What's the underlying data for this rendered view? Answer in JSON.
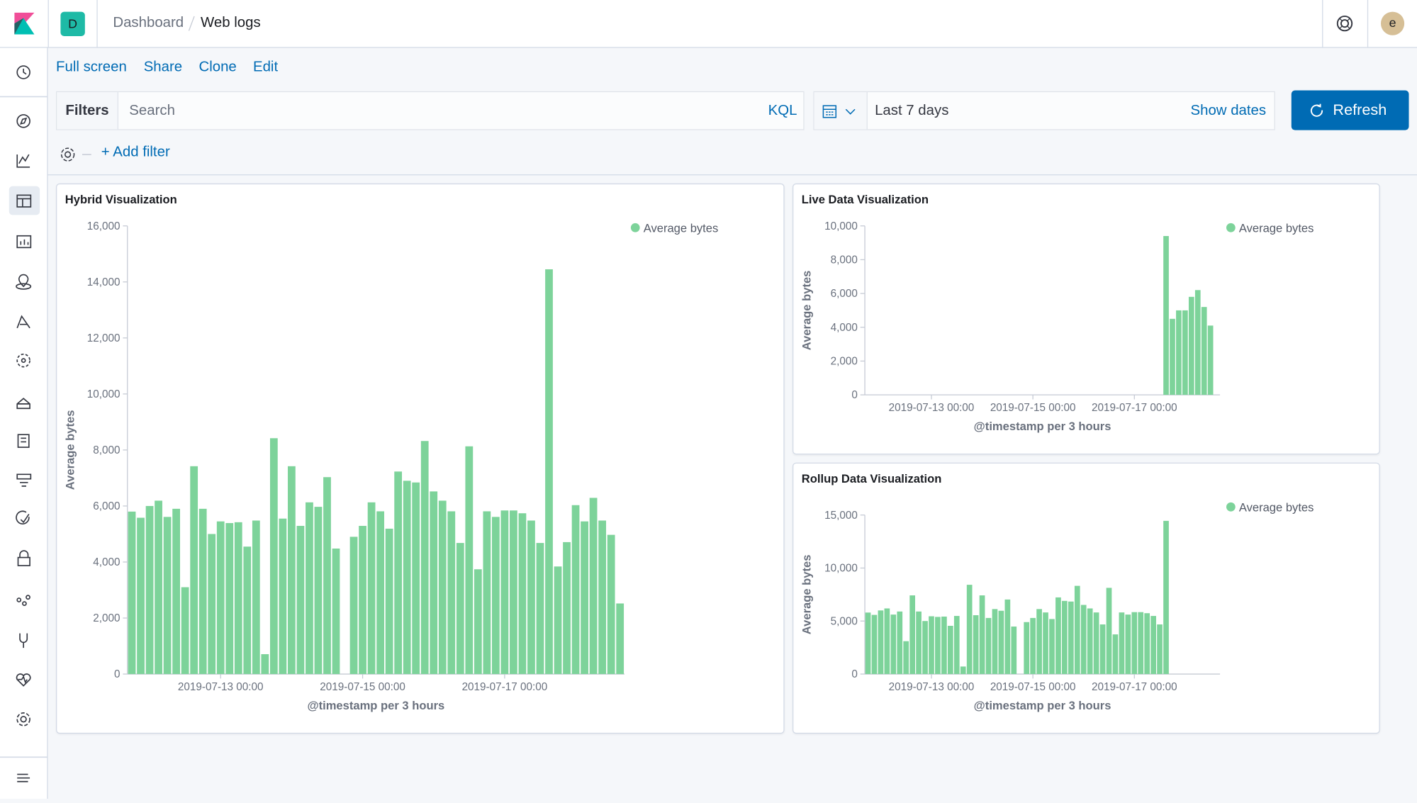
{
  "header": {
    "space": "D",
    "breadcrumbs": [
      "Dashboard",
      "Web logs"
    ],
    "avatar": "e"
  },
  "menu": [
    "Full screen",
    "Share",
    "Clone",
    "Edit"
  ],
  "query_bar": {
    "filters": "Filters",
    "placeholder": "Search",
    "language": "KQL",
    "time_range": "Last 7 days",
    "show_dates": "Show dates",
    "refresh": "Refresh",
    "add_filter": "+ Add filter"
  },
  "chart_data": [
    {
      "type": "bar",
      "title": "Hybrid Visualization",
      "x_label": "@timestamp per 3 hours",
      "y_label": "Average bytes",
      "legend": "top-right",
      "categories": [
        null,
        null,
        null,
        null,
        null,
        null,
        null,
        null,
        null,
        null,
        "2019-07-13 00:00",
        null,
        null,
        null,
        null,
        null,
        null,
        null,
        null,
        null,
        null,
        null,
        null,
        null,
        null,
        null,
        "2019-07-15 00:00",
        null,
        null,
        null,
        null,
        null,
        null,
        null,
        null,
        null,
        null,
        null,
        null,
        null,
        null,
        null,
        "2019-07-17 00:00",
        null,
        null,
        null,
        null,
        null,
        null,
        null,
        null,
        null,
        null,
        null,
        null,
        null
      ],
      "series": [
        {
          "name": "Average bytes",
          "color": "#7dd39a",
          "values": [
            5800,
            5580,
            6000,
            6190,
            5610,
            5900,
            3100,
            7420,
            5900,
            5000,
            5450,
            5390,
            5420,
            4550,
            5480,
            710,
            8420,
            5550,
            7420,
            5290,
            6130,
            5970,
            7030,
            4480,
            null,
            4900,
            5290,
            6130,
            5810,
            5190,
            7230,
            6900,
            6840,
            8320,
            6520,
            6190,
            5810,
            4680,
            8130,
            3740,
            5810,
            5610,
            5840,
            5840,
            5740,
            5480,
            4680,
            14450,
            3840,
            4710,
            6030,
            5450,
            6290,
            5480,
            4970,
            2520
          ]
        }
      ],
      "ylim": [
        0,
        16000
      ],
      "yticks": [
        0,
        {
          "value": 2000,
          "label": "2,000"
        },
        {
          "value": 4000,
          "label": "4,000"
        },
        {
          "value": 6000,
          "label": "6,000"
        },
        {
          "value": 8000,
          "label": "8,000"
        },
        {
          "value": 10000,
          "label": "10,000"
        },
        {
          "value": 12000,
          "label": "12,000"
        },
        {
          "value": 14000,
          "label": "14,000"
        },
        {
          "value": 16000,
          "label": "16,000"
        }
      ]
    },
    {
      "type": "bar",
      "title": "Live Data Visualization",
      "x_label": "@timestamp per 3 hours",
      "y_label": "Average bytes",
      "legend": "top-right",
      "categories": [
        null,
        null,
        null,
        null,
        null,
        null,
        null,
        null,
        null,
        null,
        "2019-07-13 00:00",
        null,
        null,
        null,
        null,
        null,
        null,
        null,
        null,
        null,
        null,
        null,
        null,
        null,
        null,
        null,
        "2019-07-15 00:00",
        null,
        null,
        null,
        null,
        null,
        null,
        null,
        null,
        null,
        null,
        null,
        null,
        null,
        null,
        null,
        "2019-07-17 00:00",
        null,
        null,
        null,
        null,
        null,
        null,
        null,
        null,
        null,
        null,
        null,
        null,
        null
      ],
      "series": [
        {
          "name": "Average bytes",
          "color": "#7dd39a",
          "values": [
            null,
            null,
            null,
            null,
            null,
            null,
            null,
            null,
            null,
            null,
            null,
            null,
            null,
            null,
            null,
            null,
            null,
            null,
            null,
            null,
            null,
            null,
            null,
            null,
            null,
            null,
            null,
            null,
            null,
            null,
            null,
            null,
            null,
            null,
            null,
            null,
            null,
            null,
            null,
            null,
            null,
            null,
            null,
            null,
            null,
            null,
            null,
            9400,
            4500,
            5000,
            5000,
            5800,
            6200,
            5200,
            4100,
            null
          ]
        }
      ],
      "ylim": [
        0,
        10000
      ],
      "yticks": [
        0,
        {
          "value": 2000,
          "label": "2,000"
        },
        {
          "value": 4000,
          "label": "4,000"
        },
        {
          "value": 6000,
          "label": "6,000"
        },
        {
          "value": 8000,
          "label": "8,000"
        },
        {
          "value": 10000,
          "label": "10,000"
        }
      ]
    },
    {
      "type": "bar",
      "title": "Rollup Data Visualization",
      "x_label": "@timestamp per 3 hours",
      "y_label": "Average bytes",
      "legend": "top-right",
      "categories": [
        null,
        null,
        null,
        null,
        null,
        null,
        null,
        null,
        null,
        null,
        "2019-07-13 00:00",
        null,
        null,
        null,
        null,
        null,
        null,
        null,
        null,
        null,
        null,
        null,
        null,
        null,
        null,
        null,
        "2019-07-15 00:00",
        null,
        null,
        null,
        null,
        null,
        null,
        null,
        null,
        null,
        null,
        null,
        null,
        null,
        null,
        null,
        "2019-07-17 00:00",
        null,
        null,
        null,
        null,
        null,
        null,
        null,
        null,
        null,
        null,
        null,
        null,
        null
      ],
      "series": [
        {
          "name": "Average bytes",
          "color": "#7dd39a",
          "values": [
            5800,
            5580,
            6000,
            6190,
            5610,
            5900,
            3100,
            7420,
            5900,
            5000,
            5450,
            5390,
            5420,
            4550,
            5480,
            710,
            8420,
            5550,
            7420,
            5290,
            6130,
            5970,
            7030,
            4480,
            null,
            4900,
            5290,
            6130,
            5810,
            5190,
            7230,
            6900,
            6840,
            8320,
            6520,
            6190,
            5810,
            4680,
            8130,
            3740,
            5810,
            5610,
            5840,
            5840,
            5740,
            5480,
            4680,
            14450,
            null,
            null,
            null,
            null,
            null,
            null,
            null,
            null
          ]
        }
      ],
      "ylim": [
        0,
        15000
      ],
      "yticks": [
        0,
        {
          "value": 5000,
          "label": "5,000"
        },
        {
          "value": 10000,
          "label": "10,000"
        },
        {
          "value": 15000,
          "label": "15,000"
        }
      ]
    }
  ]
}
